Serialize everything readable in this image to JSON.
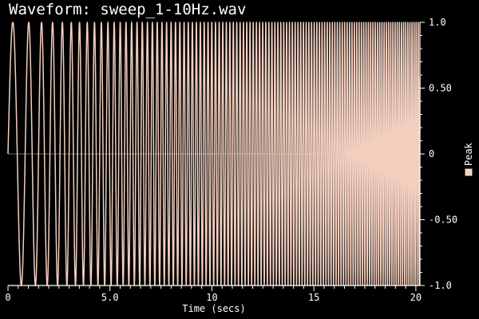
{
  "chart_data": {
    "type": "line",
    "title": "Waveform: sweep_1-10Hz.wav",
    "xlabel": "Time (secs)",
    "ylabel": "",
    "xlim": [
      0,
      20.2
    ],
    "ylim": [
      -1.0,
      1.0
    ],
    "x_major_ticks": [
      0,
      5,
      10,
      15,
      20
    ],
    "x_tick_labels": [
      "0",
      "5.0",
      "10",
      "15",
      "20"
    ],
    "x_minor_tick_step": 0.5,
    "y_major_ticks": [
      1.0,
      0.5,
      0,
      -0.5,
      -1.0
    ],
    "y_tick_labels": [
      "1.0",
      "0.50",
      "0",
      "-0.50",
      "-1.0"
    ],
    "y_axis_side": "right",
    "grid": false,
    "legend_position": "right",
    "series": [
      {
        "name": "Peak",
        "color": "#f2cfbf",
        "signal": "linear frequency sine sweep",
        "freq_start_hz": 1,
        "freq_end_hz": 10,
        "t_start": 0,
        "t_end": 20.2,
        "amplitude": 1.0
      }
    ],
    "colors": {
      "background": "#000000",
      "axis": "#ffffff",
      "zero_line": "#6e6e6e"
    }
  }
}
